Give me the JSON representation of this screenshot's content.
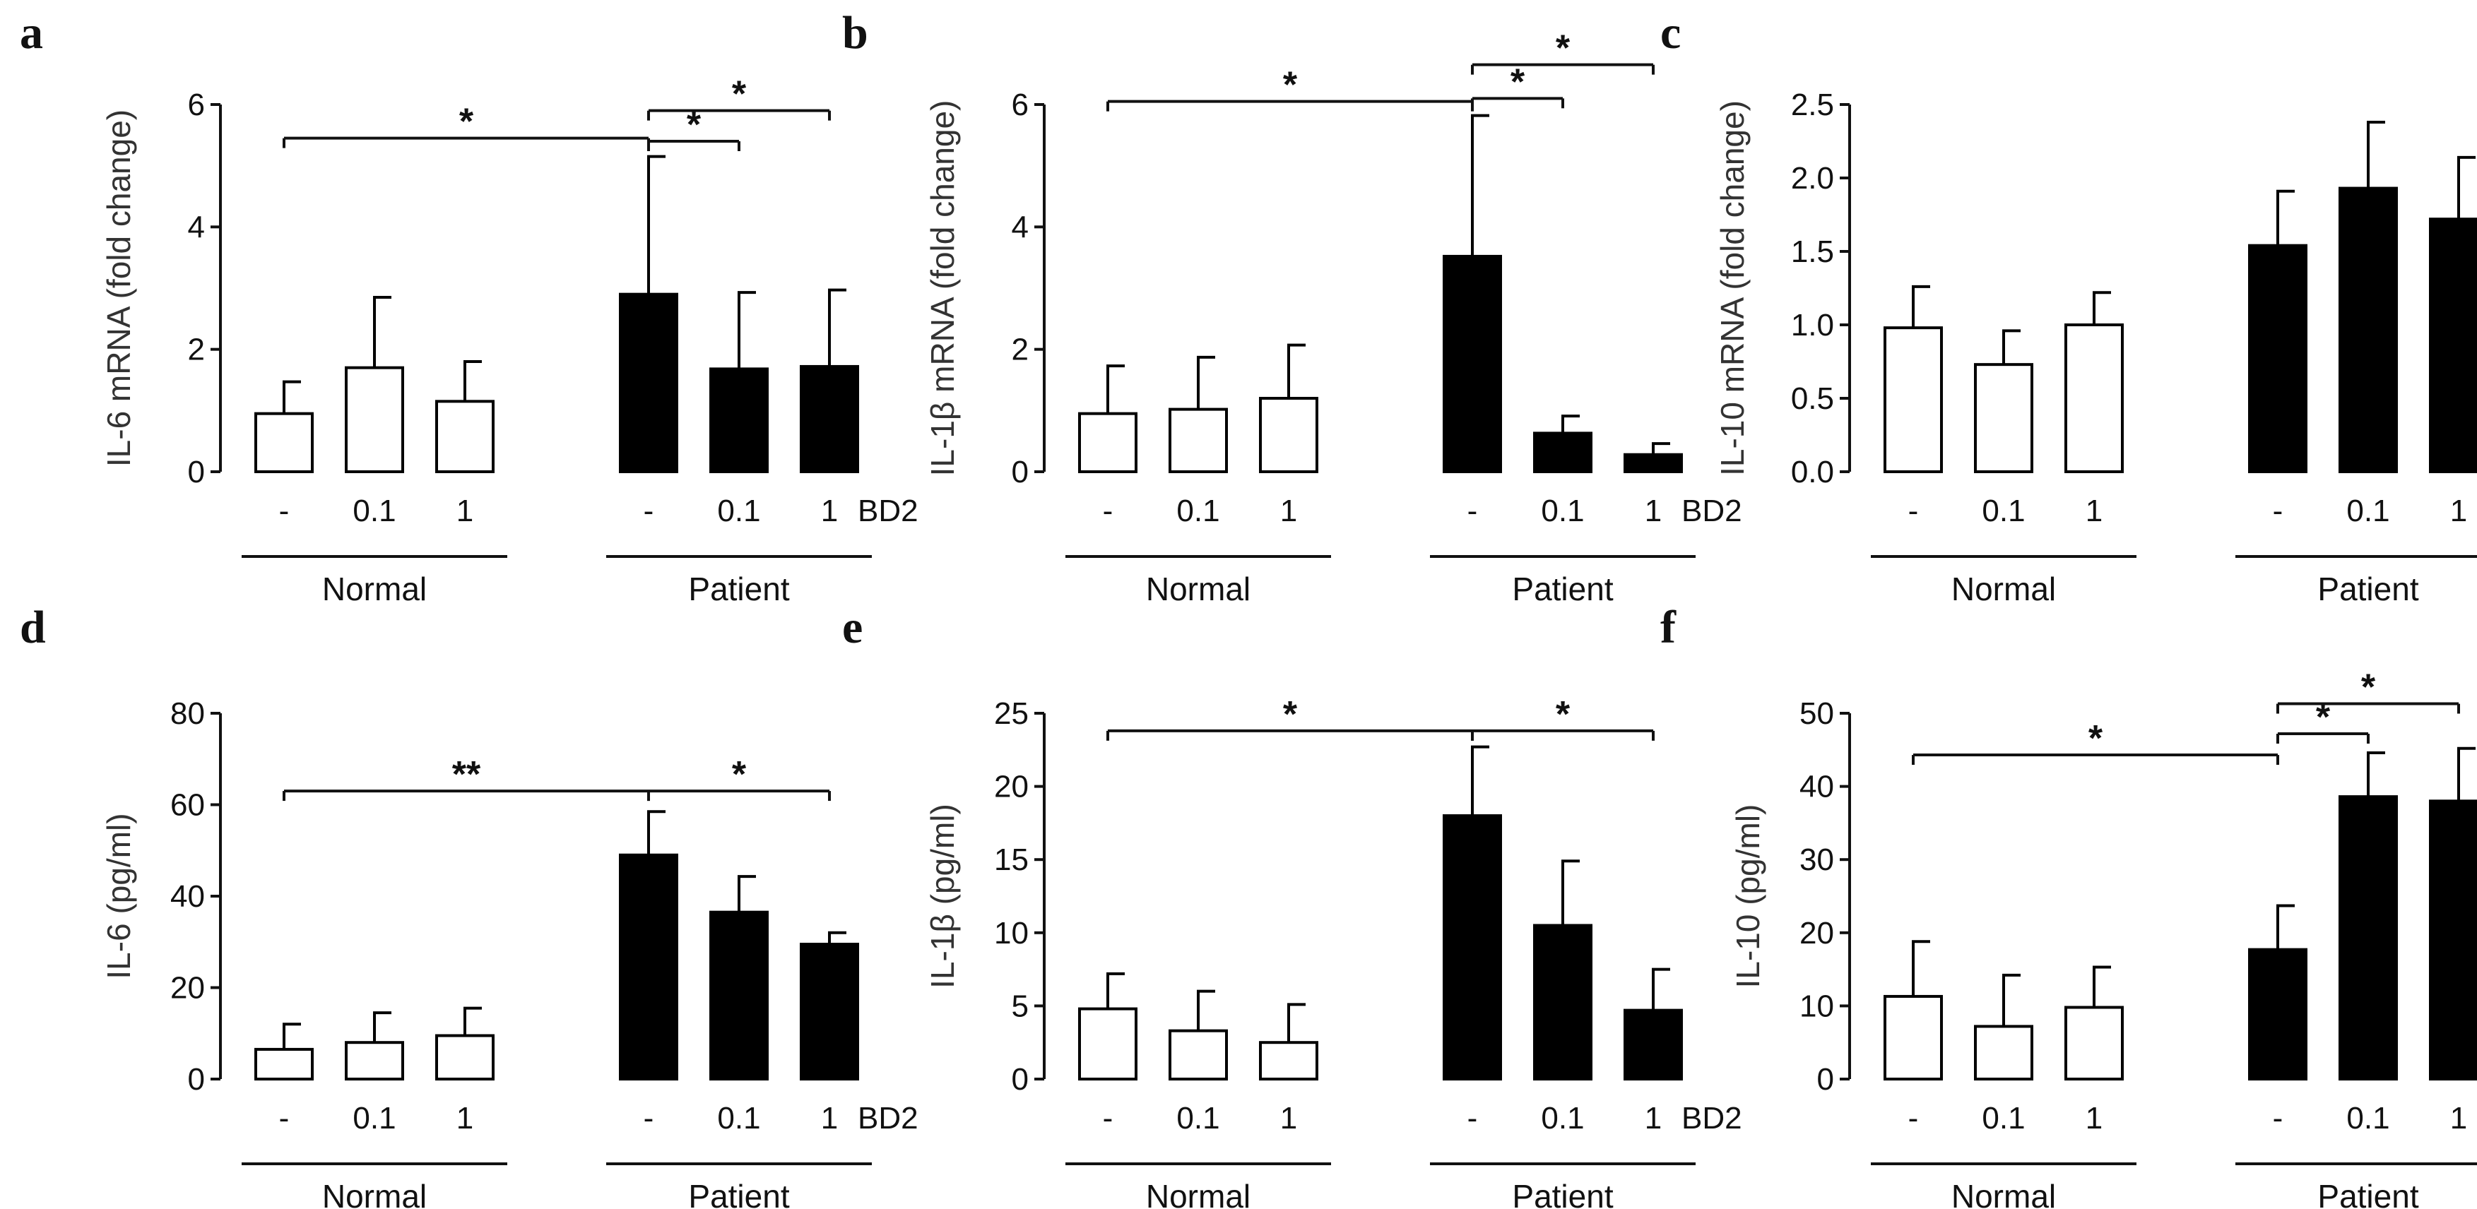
{
  "figure": {
    "x_categories": [
      "-",
      "0.1",
      "1",
      "-",
      "0.1",
      "1"
    ],
    "treatment_label": "BD2",
    "groups": [
      "Normal",
      "Patient"
    ],
    "colors": {
      "normal_fill": "#ffffff",
      "patient_fill": "#000000",
      "stroke": "#000000"
    }
  },
  "chart_data": [
    {
      "panel": "a",
      "type": "bar",
      "ylabel": "IL-6 mRNA (fold change)",
      "categories": [
        "-",
        "0.1",
        "1",
        "-",
        "0.1",
        "1"
      ],
      "groups": [
        "Normal",
        "Normal",
        "Normal",
        "Patient",
        "Patient",
        "Patient"
      ],
      "values": [
        0.95,
        1.7,
        1.15,
        2.9,
        1.68,
        1.72
      ],
      "errors": [
        0.52,
        1.15,
        0.65,
        2.25,
        1.25,
        1.25
      ],
      "ylim": [
        0,
        6
      ],
      "yticks": [
        0,
        2,
        4,
        6
      ],
      "significance": [
        {
          "from": 0,
          "to": 3,
          "y": 5.45,
          "label": "*"
        },
        {
          "from": 3,
          "to": 4,
          "y": 5.4,
          "label": "*"
        },
        {
          "from": 3,
          "to": 5,
          "y": 5.9,
          "label": "*"
        }
      ]
    },
    {
      "panel": "b",
      "type": "bar",
      "ylabel": "IL-1β mRNA (fold change)",
      "categories": [
        "-",
        "0.1",
        "1",
        "-",
        "0.1",
        "1"
      ],
      "groups": [
        "Normal",
        "Normal",
        "Normal",
        "Patient",
        "Patient",
        "Patient"
      ],
      "values": [
        0.95,
        1.02,
        1.2,
        3.52,
        0.63,
        0.28
      ],
      "errors": [
        0.78,
        0.85,
        0.87,
        2.3,
        0.28,
        0.18
      ],
      "ylim": [
        0,
        6
      ],
      "yticks": [
        0,
        2,
        4,
        6
      ],
      "significance": [
        {
          "from": 0,
          "to": 3,
          "y": 6.05,
          "label": "*"
        },
        {
          "from": 3,
          "to": 4,
          "y": 6.1,
          "label": "*"
        },
        {
          "from": 3,
          "to": 5,
          "y": 6.65,
          "label": "*"
        }
      ]
    },
    {
      "panel": "c",
      "type": "bar",
      "ylabel": "IL-10 mRNA (fold change)",
      "categories": [
        "-",
        "0.1",
        "1",
        "-",
        "0.1",
        "1"
      ],
      "groups": [
        "Normal",
        "Normal",
        "Normal",
        "Patient",
        "Patient",
        "Patient"
      ],
      "values": [
        0.98,
        0.73,
        1.0,
        1.54,
        1.93,
        1.72
      ],
      "errors": [
        0.28,
        0.23,
        0.22,
        0.37,
        0.45,
        0.42
      ],
      "ylim": [
        0,
        2.5
      ],
      "yticks": [
        0.0,
        0.5,
        1.0,
        1.5,
        2.0,
        2.5
      ],
      "significance": []
    },
    {
      "panel": "d",
      "type": "bar",
      "ylabel": "IL-6 (pg/ml)",
      "categories": [
        "-",
        "0.1",
        "1",
        "-",
        "0.1",
        "1"
      ],
      "groups": [
        "Normal",
        "Normal",
        "Normal",
        "Patient",
        "Patient",
        "Patient"
      ],
      "values": [
        6.5,
        8,
        9.5,
        49,
        36.5,
        29.5
      ],
      "errors": [
        5.5,
        6.5,
        6,
        9.5,
        7.8,
        2.5
      ],
      "ylim": [
        0,
        80
      ],
      "yticks": [
        0,
        20,
        40,
        60,
        80
      ],
      "significance": [
        {
          "from": 0,
          "to": 3,
          "y": 63,
          "label": "**"
        },
        {
          "from": 3,
          "to": 5,
          "y": 63,
          "label": "*"
        }
      ]
    },
    {
      "panel": "e",
      "type": "bar",
      "ylabel": "IL-1β (pg/ml)",
      "categories": [
        "-",
        "0.1",
        "1",
        "-",
        "0.1",
        "1"
      ],
      "groups": [
        "Normal",
        "Normal",
        "Normal",
        "Patient",
        "Patient",
        "Patient"
      ],
      "values": [
        4.8,
        3.3,
        2.5,
        18,
        10.5,
        4.7
      ],
      "errors": [
        2.4,
        2.7,
        2.6,
        4.7,
        4.4,
        2.8
      ],
      "ylim": [
        0,
        25
      ],
      "yticks": [
        0,
        5,
        10,
        15,
        20,
        25
      ],
      "significance": [
        {
          "from": 0,
          "to": 3,
          "y": 23.8,
          "label": "*"
        },
        {
          "from": 3,
          "to": 5,
          "y": 23.8,
          "label": "*"
        }
      ]
    },
    {
      "panel": "f",
      "type": "bar",
      "ylabel": "IL-10 (pg/ml)",
      "categories": [
        "-",
        "0.1",
        "1",
        "-",
        "0.1",
        "1"
      ],
      "groups": [
        "Normal",
        "Normal",
        "Normal",
        "Patient",
        "Patient",
        "Patient"
      ],
      "values": [
        11.3,
        7.2,
        9.8,
        17.7,
        38.6,
        38.0
      ],
      "errors": [
        7.5,
        7,
        5.5,
        6,
        6,
        7.2
      ],
      "ylim": [
        0,
        50
      ],
      "yticks": [
        0,
        10,
        20,
        30,
        40,
        50
      ],
      "significance": [
        {
          "from": 0,
          "to": 3,
          "y": 44.3,
          "label": "*"
        },
        {
          "from": 3,
          "to": 4,
          "y": 47.2,
          "label": "*"
        },
        {
          "from": 3,
          "to": 5,
          "y": 51.3,
          "label": "*"
        }
      ]
    }
  ]
}
